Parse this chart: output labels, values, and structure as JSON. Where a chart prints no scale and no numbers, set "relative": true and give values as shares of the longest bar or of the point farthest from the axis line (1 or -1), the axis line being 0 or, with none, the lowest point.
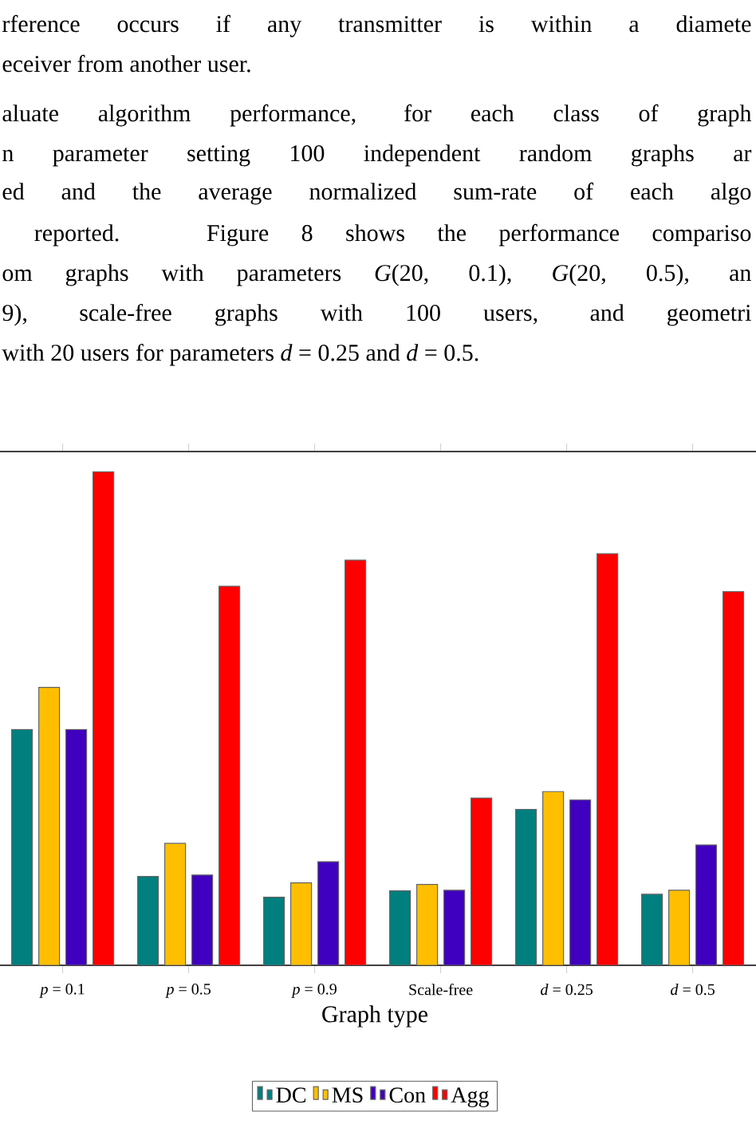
{
  "chart_data": {
    "type": "bar",
    "relative": true,
    "xlabel": "Graph type",
    "categories": [
      "*p* = 0.1",
      "*p* = 0.5",
      "*p* = 0.9",
      "Scale-free",
      "*d* = 0.25",
      "*d* = 0.5"
    ],
    "series": [
      {
        "name": "DC",
        "color": "#007f7f",
        "values": [
          0.478,
          0.18,
          0.138,
          0.151,
          0.316,
          0.144
        ]
      },
      {
        "name": "MS",
        "color": "#ffbf00",
        "values": [
          0.563,
          0.247,
          0.167,
          0.164,
          0.352,
          0.152
        ]
      },
      {
        "name": "Con",
        "color": "#4000bf",
        "values": [
          0.478,
          0.183,
          0.21,
          0.152,
          0.335,
          0.244
        ]
      },
      {
        "name": "Agg",
        "color": "#ff0000",
        "values": [
          1,
          0.768,
          0.821,
          0.339,
          0.834,
          0.757
        ]
      }
    ],
    "legend": "bottom",
    "annotations": [
      "rference occurs if any transmitter is within a diamete",
      "eceiver from another user.",
      "aluate algorithm performance, for each class of graph",
      "n parameter setting 100 independent random graphs ar",
      "ed and the average normalized sum-rate of each algo",
      " reported. Figure 8 shows the performance compariso",
      "om graphs with parameters *G*(20, 0.1), *G*(20, 0.5), an",
      "9), scale-free graphs with 100 users, and geometri",
      "with 20 users for parameters *d* = 0.25 and *d* = 0.5."
    ]
  }
}
